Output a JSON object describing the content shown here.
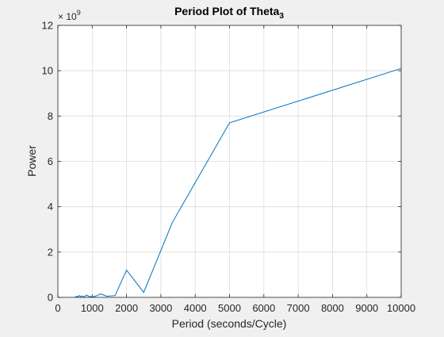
{
  "chart_data": {
    "type": "line",
    "title_main": "Period Plot of Theta",
    "title_subscript": "3",
    "xlabel": "Period (seconds/Cycle)",
    "ylabel": "Power",
    "y_exponent_base": "× 10",
    "y_exponent_power": "9",
    "xlim": [
      0,
      10000
    ],
    "ylim": [
      0,
      12
    ],
    "y_scale": 1000000000.0,
    "grid": true,
    "line_color": "#0072BD",
    "x_ticks": [
      0,
      1000,
      2000,
      3000,
      4000,
      5000,
      6000,
      7000,
      8000,
      9000,
      10000
    ],
    "x_tick_labels": [
      "0",
      "1000",
      "2000",
      "3000",
      "4000",
      "5000",
      "6000",
      "7000",
      "8000",
      "9000",
      "10000"
    ],
    "y_ticks": [
      0,
      2,
      4,
      6,
      8,
      10,
      12
    ],
    "y_tick_labels": [
      "0",
      "2",
      "4",
      "6",
      "8",
      "10",
      "12"
    ],
    "series": [
      {
        "x": [
          500,
          556,
          588,
          625,
          667,
          714,
          769,
          833,
          909,
          1000,
          1111,
          1250,
          1429,
          1667,
          2000,
          2500,
          3333,
          5000,
          10000
        ],
        "y": [
          0.01,
          0.05,
          0.02,
          0.08,
          0.03,
          0.06,
          0.02,
          0.1,
          0.04,
          0.02,
          0.06,
          0.15,
          0.05,
          0.08,
          1.2,
          0.22,
          3.3,
          7.7,
          10.1
        ]
      }
    ]
  }
}
